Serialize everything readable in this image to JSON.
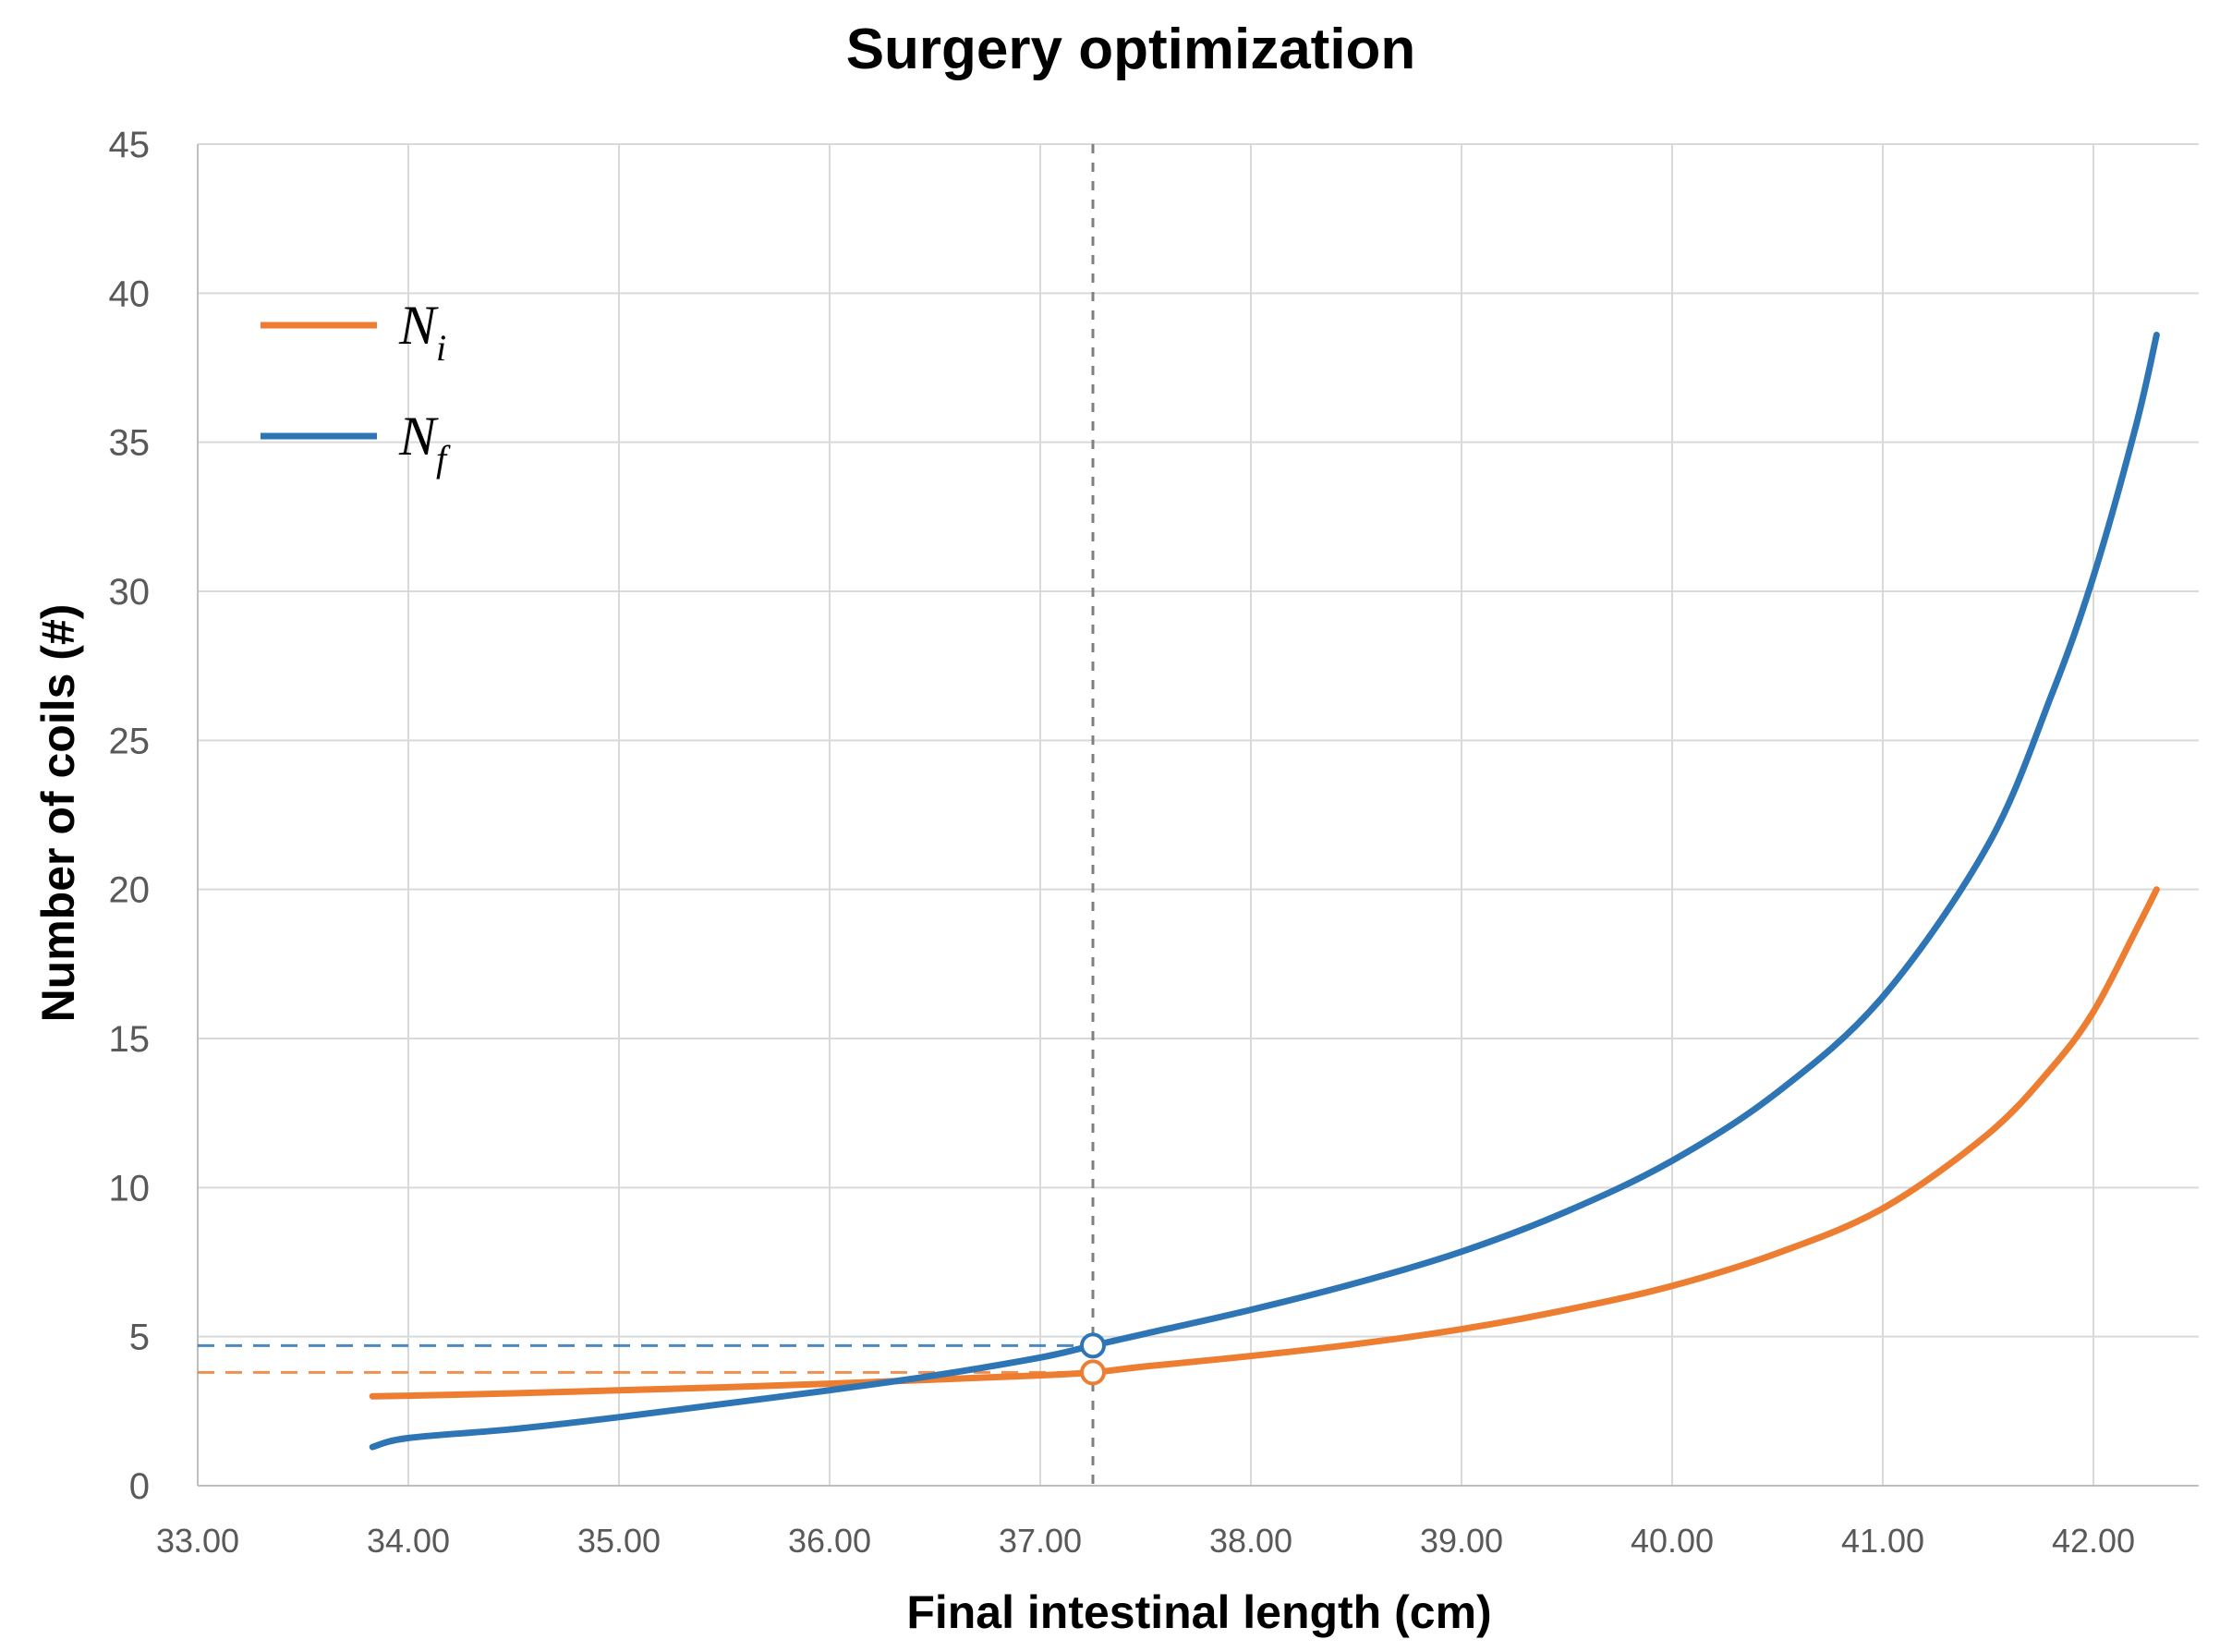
{
  "chart_data": {
    "type": "line",
    "title": "Surgery optimization",
    "xlabel": "Final intestinal length (cm)",
    "ylabel": "Number of coils (#)",
    "xlim": [
      33.0,
      42.5
    ],
    "ylim": [
      0,
      45
    ],
    "grid": true,
    "legend_position": "top-left",
    "x_ticks": [
      "33.00",
      "34.00",
      "35.00",
      "36.00",
      "37.00",
      "38.00",
      "39.00",
      "40.00",
      "41.00",
      "42.00"
    ],
    "y_ticks": [
      "0",
      "5",
      "10",
      "15",
      "20",
      "25",
      "30",
      "35",
      "40",
      "45"
    ],
    "series": [
      {
        "name": "N_i",
        "label_main": "N",
        "label_sub": "i",
        "color": "#ED7D31",
        "x": [
          33.83,
          34.0,
          34.5,
          35.0,
          35.5,
          36.0,
          36.5,
          37.0,
          37.25,
          37.5,
          38.0,
          38.5,
          39.0,
          39.5,
          40.0,
          40.5,
          41.0,
          41.5,
          41.8,
          42.0,
          42.2,
          42.3
        ],
        "y": [
          3.0,
          3.02,
          3.1,
          3.2,
          3.3,
          3.42,
          3.56,
          3.7,
          3.8,
          4.0,
          4.35,
          4.75,
          5.25,
          5.9,
          6.7,
          7.8,
          9.3,
          11.8,
          14.0,
          15.9,
          18.6,
          20.0
        ]
      },
      {
        "name": "N_f",
        "label_main": "N",
        "label_sub": "f",
        "color": "#2E75B6",
        "x": [
          33.83,
          34.0,
          34.5,
          35.0,
          35.5,
          36.0,
          36.5,
          37.0,
          37.25,
          37.5,
          38.0,
          38.5,
          39.0,
          39.5,
          40.0,
          40.5,
          41.0,
          41.5,
          41.8,
          42.0,
          42.2,
          42.3
        ],
        "y": [
          1.3,
          1.6,
          1.9,
          2.3,
          2.75,
          3.2,
          3.7,
          4.3,
          4.7,
          5.1,
          5.9,
          6.8,
          7.85,
          9.2,
          10.9,
          13.2,
          16.4,
          21.5,
          26.5,
          30.5,
          35.5,
          38.6
        ]
      }
    ],
    "reference_x": 37.25,
    "markers": [
      {
        "series": "N_f",
        "x": 37.25,
        "y": 4.7,
        "color": "#2E75B6"
      },
      {
        "series": "N_i",
        "x": 37.25,
        "y": 3.8,
        "color": "#ED7D31"
      }
    ]
  }
}
